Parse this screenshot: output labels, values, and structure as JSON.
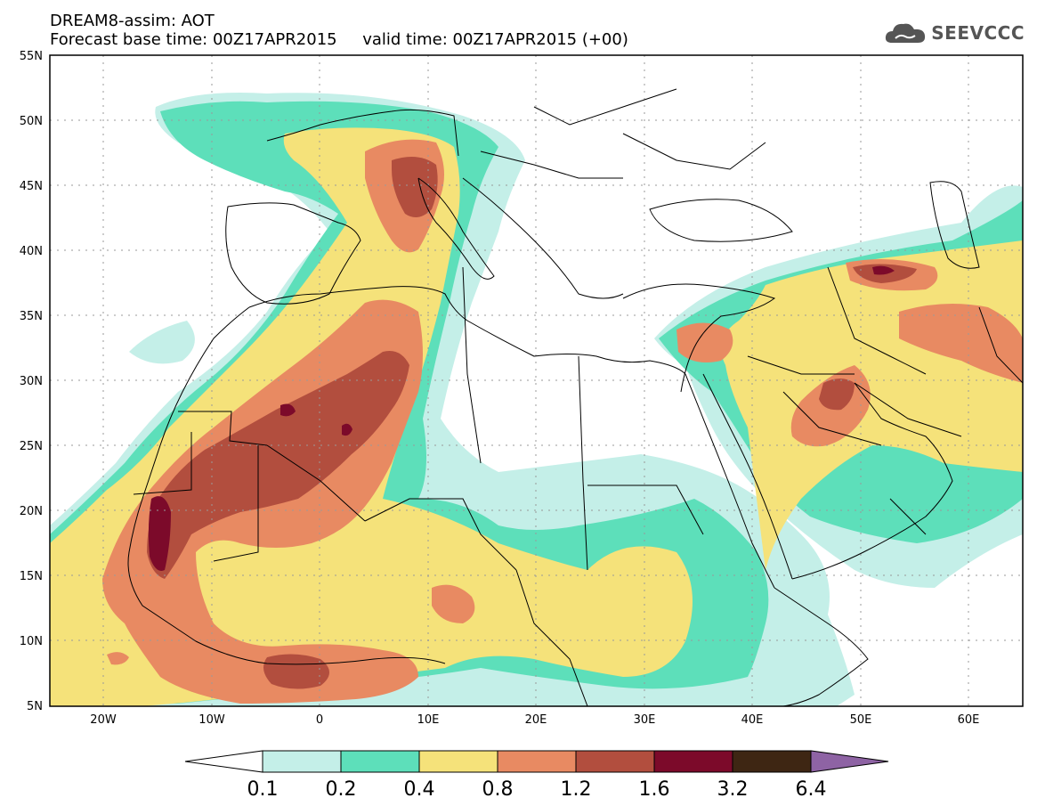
{
  "header": {
    "title_line1": "DREAM8-assim: AOT",
    "title_line2": "Forecast base time: 00Z17APR2015     valid time: 00Z17APR2015 (+00)",
    "logo_text": "SEEVCCC"
  },
  "map": {
    "lon_range": [
      -25,
      65
    ],
    "lat_range": [
      5,
      55
    ],
    "lat_ticks": [
      "55N",
      "50N",
      "45N",
      "40N",
      "35N",
      "30N",
      "25N",
      "20N",
      "15N",
      "10N",
      "5N"
    ],
    "lon_ticks": [
      "20W",
      "10W",
      "0",
      "10E",
      "20E",
      "30E",
      "40E",
      "50E",
      "60E"
    ],
    "grid": true
  },
  "colorbar": {
    "labels": [
      "0.1",
      "0.2",
      "0.4",
      "0.8",
      "1.2",
      "1.6",
      "3.2",
      "6.4"
    ],
    "colors": [
      "#ffffff",
      "#c4efe8",
      "#5ddfba",
      "#f5e27a",
      "#e88a62",
      "#b24e3e",
      "#7c0a2a",
      "#3e2613",
      "#8e63a4"
    ]
  }
}
